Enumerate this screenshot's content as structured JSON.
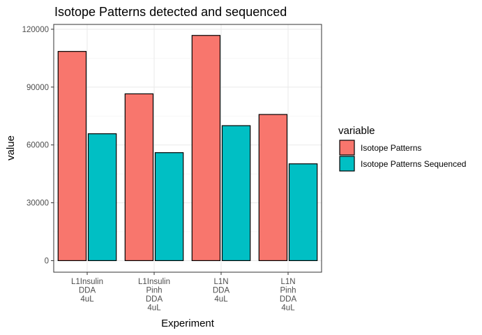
{
  "chart_data": {
    "type": "bar",
    "title": "Isotope Patterns detected and sequenced",
    "xlabel": "Experiment",
    "ylabel": "value",
    "categories": [
      [
        "L1Insulin",
        "DDA",
        "4uL"
      ],
      [
        "L1Insulin",
        "Pinh",
        "DDA",
        "4uL"
      ],
      [
        "L1N",
        "DDA",
        "4uL"
      ],
      [
        "L1N",
        "Pinh",
        "DDA",
        "4uL"
      ]
    ],
    "series": [
      {
        "name": "Isotope Patterns",
        "color": "#F8766D",
        "values": [
          108500,
          86500,
          116800,
          75800
        ]
      },
      {
        "name": "Isotope Patterns Sequenced",
        "color": "#00BFC4",
        "values": [
          65800,
          56000,
          70000,
          50200
        ]
      }
    ],
    "ylim": [
      -6000,
      122500
    ],
    "yticks": [
      0,
      30000,
      60000,
      90000,
      120000
    ],
    "grid": true,
    "legend": {
      "title": "variable",
      "position": "right"
    }
  }
}
